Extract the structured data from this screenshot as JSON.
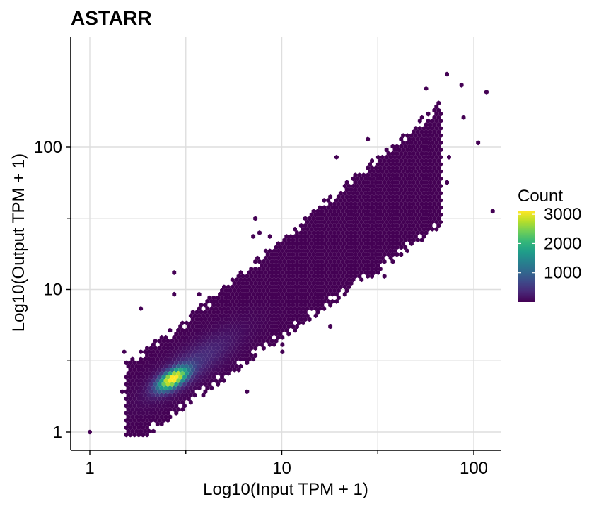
{
  "chart_data": {
    "type": "hexbin",
    "title": "ASTARR",
    "xlabel": "Log10(Input TPM + 1)",
    "ylabel": "Log10(Output TPM + 1)",
    "x_scale": "log10",
    "y_scale": "log10",
    "xlim": [
      0.9,
      140
    ],
    "ylim": [
      0.79,
      500
    ],
    "x_ticks": [
      1,
      10,
      100
    ],
    "x_tick_labels": [
      "1",
      "10",
      "100"
    ],
    "y_ticks": [
      1,
      10,
      100
    ],
    "y_tick_labels": [
      "1",
      "10",
      "100"
    ],
    "grid": true,
    "legend": {
      "title": "Count",
      "position": "right",
      "range": [
        0,
        3100
      ],
      "breaks": [
        1000,
        2000,
        3000
      ],
      "break_labels": [
        "1000",
        "2000",
        "3000"
      ]
    },
    "colormap": [
      "#440154",
      "#482878",
      "#3e4989",
      "#31688e",
      "#26828e",
      "#1f9e89",
      "#35b779",
      "#6ece58",
      "#b5de2b",
      "#fde725"
    ],
    "density": {
      "main_cluster": {
        "center_x": 2.7,
        "center_y": 2.35,
        "peak_count": 3000
      },
      "band": {
        "x_range": [
          2.0,
          60
        ],
        "slope": 1.0
      }
    }
  }
}
